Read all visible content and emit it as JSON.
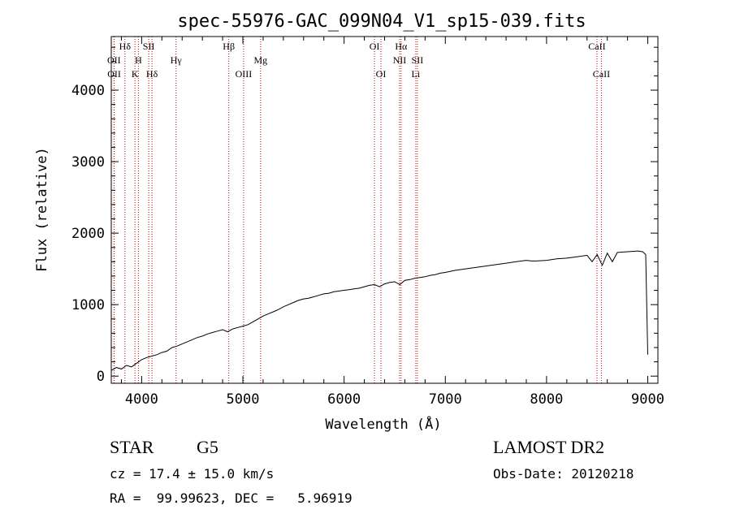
{
  "chart_data": {
    "type": "line",
    "title": "spec-55976-GAC_099N04_V1_sp15-039.fits",
    "xlabel": "Wavelength (Å)",
    "ylabel": "Flux (relative)",
    "xlim": [
      3700,
      9100
    ],
    "ylim": [
      -100,
      4750
    ],
    "xticks": [
      4000,
      5000,
      6000,
      7000,
      8000,
      9000
    ],
    "yticks": [
      0,
      1000,
      2000,
      3000,
      4000
    ],
    "series": [
      {
        "x": [
          3700,
          3750,
          3800,
          3850,
          3900,
          3950,
          4000,
          4050,
          4100,
          4150,
          4200,
          4250,
          4300,
          4350,
          4400,
          4450,
          4500,
          4550,
          4600,
          4650,
          4700,
          4750,
          4800,
          4850,
          4900,
          4950,
          5000,
          5050,
          5100,
          5150,
          5200,
          5250,
          5300,
          5350,
          5400,
          5450,
          5500,
          5550,
          5600,
          5650,
          5700,
          5750,
          5800,
          5850,
          5900,
          5950,
          6000,
          6050,
          6100,
          6150,
          6200,
          6250,
          6300,
          6350,
          6400,
          6450,
          6500,
          6550,
          6600,
          6650,
          6700,
          6750,
          6800,
          6850,
          6900,
          6950,
          7000,
          7100,
          7200,
          7300,
          7400,
          7500,
          7600,
          7700,
          7800,
          7850,
          7900,
          8000,
          8100,
          8200,
          8300,
          8400,
          8450,
          8500,
          8550,
          8600,
          8650,
          8700,
          8800,
          8900,
          8950,
          8980,
          9000
        ],
        "y": [
          80,
          120,
          100,
          150,
          130,
          180,
          230,
          260,
          280,
          300,
          330,
          350,
          400,
          420,
          450,
          480,
          510,
          540,
          560,
          590,
          610,
          630,
          650,
          620,
          660,
          680,
          700,
          720,
          760,
          800,
          840,
          870,
          900,
          930,
          970,
          1000,
          1030,
          1060,
          1080,
          1090,
          1110,
          1130,
          1150,
          1160,
          1180,
          1190,
          1200,
          1210,
          1220,
          1230,
          1250,
          1270,
          1280,
          1250,
          1290,
          1310,
          1320,
          1280,
          1340,
          1350,
          1370,
          1380,
          1390,
          1410,
          1420,
          1440,
          1450,
          1480,
          1500,
          1520,
          1540,
          1560,
          1580,
          1600,
          1620,
          1610,
          1610,
          1620,
          1640,
          1650,
          1670,
          1690,
          1600,
          1700,
          1550,
          1720,
          1600,
          1730,
          1740,
          1750,
          1740,
          1700,
          300
        ],
        "color": "#000000"
      }
    ],
    "grid": false,
    "legend": "none",
    "line_color": "#cc0000",
    "spectral_lines": [
      {
        "label": "Hδ",
        "wave": 3835,
        "row": 0
      },
      {
        "label": "OII",
        "wave": 3727,
        "row": 1
      },
      {
        "label": "OII",
        "wave": 3729,
        "row": 2
      },
      {
        "label": "H",
        "wave": 3968,
        "row": 1
      },
      {
        "label": "K",
        "wave": 3934,
        "row": 2
      },
      {
        "label": "SII",
        "wave": 4070,
        "row": 0
      },
      {
        "label": "Hδ",
        "wave": 4102,
        "row": 2
      },
      {
        "label": "Hγ",
        "wave": 4340,
        "row": 1
      },
      {
        "label": "Hβ",
        "wave": 4861,
        "row": 0
      },
      {
        "label": "OIII",
        "wave": 5007,
        "row": 2
      },
      {
        "label": "Mg",
        "wave": 5175,
        "row": 1
      },
      {
        "label": "OI",
        "wave": 6300,
        "row": 0
      },
      {
        "label": "OI",
        "wave": 6364,
        "row": 2
      },
      {
        "label": "Hα",
        "wave": 6563,
        "row": 0
      },
      {
        "label": "NII",
        "wave": 6548,
        "row": 1
      },
      {
        "label": "Li",
        "wave": 6708,
        "row": 2
      },
      {
        "label": "SII",
        "wave": 6724,
        "row": 1
      },
      {
        "label": "CaII",
        "wave": 8498,
        "row": 0
      },
      {
        "label": "CaII",
        "wave": 8542,
        "row": 2
      }
    ]
  },
  "info": {
    "object_type": "STAR",
    "subclass": "G5",
    "survey": "LAMOST DR2",
    "cz_line": "cz = 17.4 ± 15.0 km/s",
    "obs_date_line": "Obs-Date: 20120218",
    "radec_line": "RA =  99.99623, DEC =   5.96919"
  }
}
